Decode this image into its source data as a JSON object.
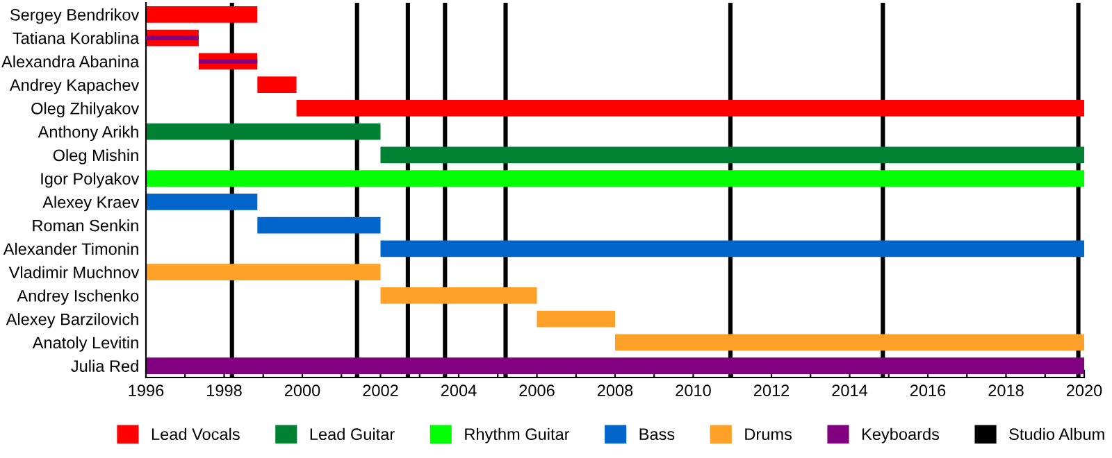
{
  "chart_data": {
    "type": "bar",
    "orientation": "horizontal",
    "categories": [
      "Sergey Bendrikov",
      "Tatiana Korablina",
      "Alexandra Abanina",
      "Andrey Kapachev",
      "Oleg Zhilyakov",
      "Anthony Arikh",
      "Oleg Mishin",
      "Igor Polyakov",
      "Alexey Kraev",
      "Roman Senkin",
      "Alexander Timonin",
      "Vladimir Muchnov",
      "Andrey Ischenko",
      "Alexey Barzilovich",
      "Anatoly Levitin",
      "Julia Red"
    ],
    "series": [
      {
        "name": "Lead Vocals",
        "color": "#ff0000",
        "base": [
          1996,
          1996,
          1997.35,
          1998.85,
          1999.85,
          null,
          null,
          null,
          null,
          null,
          null,
          null,
          null,
          null,
          null,
          null
        ],
        "values": [
          2.85,
          1.35,
          1.5,
          1.0,
          20.15,
          null,
          null,
          null,
          null,
          null,
          null,
          null,
          null,
          null,
          null,
          null
        ]
      },
      {
        "name": "Lead Guitar",
        "color": "#008033",
        "base": [
          null,
          null,
          null,
          null,
          null,
          1996,
          2002,
          null,
          null,
          null,
          null,
          null,
          null,
          null,
          null,
          null
        ],
        "values": [
          null,
          null,
          null,
          null,
          null,
          6,
          18,
          null,
          null,
          null,
          null,
          null,
          null,
          null,
          null,
          null
        ]
      },
      {
        "name": "Rhythm Guitar",
        "color": "#00ff00",
        "base": [
          null,
          null,
          null,
          null,
          null,
          null,
          null,
          1996,
          null,
          null,
          null,
          null,
          null,
          null,
          null,
          null
        ],
        "values": [
          null,
          null,
          null,
          null,
          null,
          null,
          null,
          24,
          null,
          null,
          null,
          null,
          null,
          null,
          null,
          null
        ]
      },
      {
        "name": "Bass",
        "color": "#0066cc",
        "base": [
          null,
          null,
          null,
          null,
          null,
          null,
          null,
          null,
          1996,
          1998.85,
          2002,
          null,
          null,
          null,
          null,
          null
        ],
        "values": [
          null,
          null,
          null,
          null,
          null,
          null,
          null,
          null,
          2.85,
          3.15,
          18,
          null,
          null,
          null,
          null,
          null
        ]
      },
      {
        "name": "Drums",
        "color": "#ffa028",
        "base": [
          null,
          null,
          null,
          null,
          null,
          null,
          null,
          null,
          null,
          null,
          null,
          1996,
          2002,
          2006,
          2008,
          null
        ],
        "values": [
          null,
          null,
          null,
          null,
          null,
          null,
          null,
          null,
          null,
          null,
          null,
          6,
          4,
          2,
          12,
          null
        ]
      },
      {
        "name": "Keyboards",
        "color": "#800080",
        "base": [
          null,
          1996,
          1997.35,
          null,
          null,
          null,
          null,
          null,
          null,
          null,
          null,
          null,
          null,
          null,
          null,
          1996
        ],
        "values": [
          null,
          1.35,
          1.5,
          null,
          null,
          null,
          null,
          null,
          null,
          null,
          null,
          null,
          null,
          null,
          null,
          24
        ]
      }
    ],
    "ref_lines": [
      {
        "axis": "x",
        "value": 1998.2,
        "label": "Studio Album",
        "color": "#000000"
      },
      {
        "axis": "x",
        "value": 2001.4,
        "label": null,
        "color": "#000000"
      },
      {
        "axis": "x",
        "value": 2002.7,
        "label": null,
        "color": "#000000"
      },
      {
        "axis": "x",
        "value": 2003.65,
        "label": null,
        "color": "#000000"
      },
      {
        "axis": "x",
        "value": 2005.2,
        "label": null,
        "color": "#000000"
      },
      {
        "axis": "x",
        "value": 2010.95,
        "label": null,
        "color": "#000000"
      },
      {
        "axis": "x",
        "value": 2014.85,
        "label": null,
        "color": "#000000"
      },
      {
        "axis": "x",
        "value": 2019.85,
        "label": null,
        "color": "#000000"
      }
    ],
    "xlim": [
      1996,
      2020
    ],
    "xticks": [
      1996,
      {
        "value": 1997,
        "label": null
      },
      1998,
      {
        "value": 1999,
        "label": null
      },
      2000,
      {
        "value": 2001,
        "label": null
      },
      2002,
      {
        "value": 2003,
        "label": null
      },
      2004,
      {
        "value": 2005,
        "label": null
      },
      2006,
      {
        "value": 2007,
        "label": null
      },
      2008,
      {
        "value": 2009,
        "label": null
      },
      2010,
      {
        "value": 2011,
        "label": null
      },
      2012,
      {
        "value": 2013,
        "label": null
      },
      2014,
      {
        "value": 2015,
        "label": null
      },
      2016,
      {
        "value": 2017,
        "label": null
      },
      2018,
      {
        "value": 2019,
        "label": null
      },
      2020
    ],
    "grid": false,
    "legend": "bottom"
  }
}
